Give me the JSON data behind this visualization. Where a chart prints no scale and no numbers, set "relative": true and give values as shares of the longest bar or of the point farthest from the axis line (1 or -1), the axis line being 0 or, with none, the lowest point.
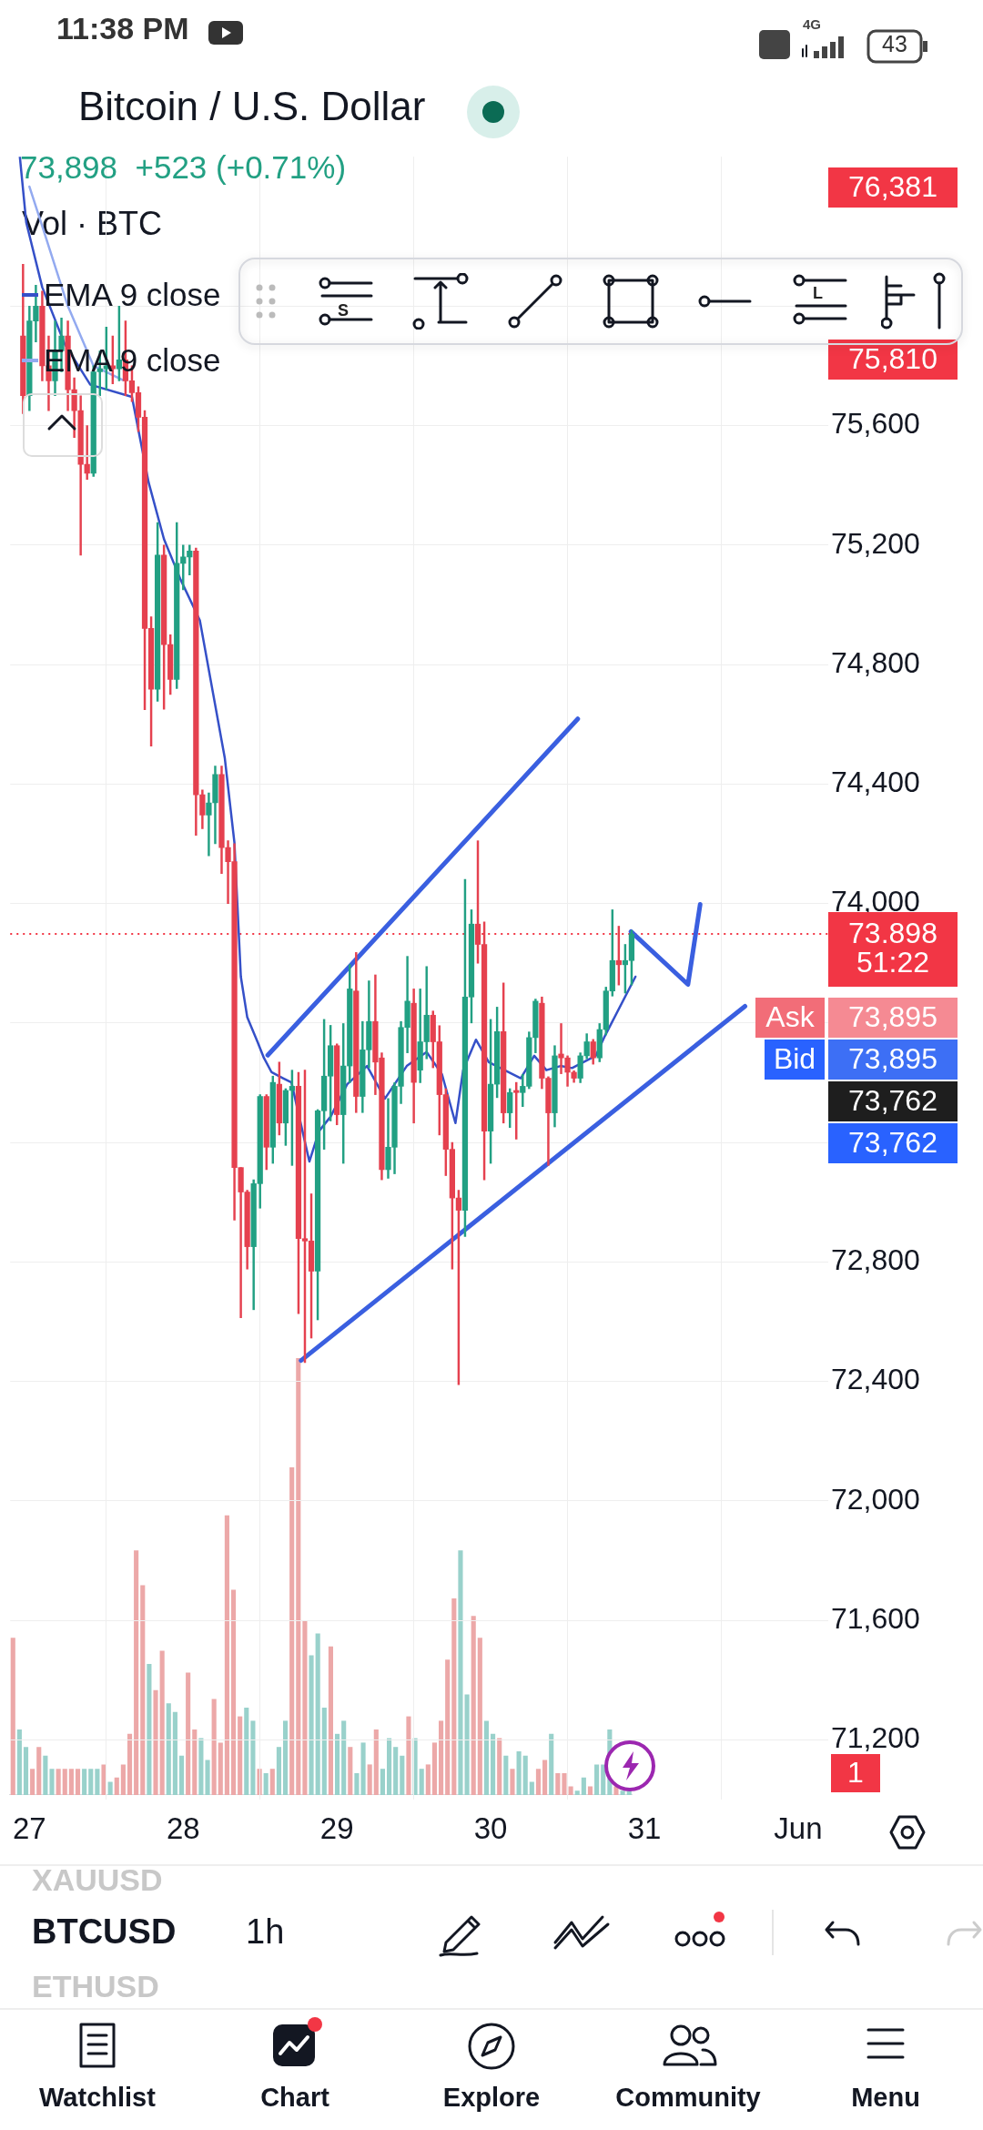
{
  "chart_data": [
    {
      "type": "candlestick",
      "title": "Bitcoin / U.S. Dollar",
      "subtitle": "73,898  +523 (+0.71%)",
      "x": [
        "--05-26T23:00",
        "--05-27T00:00",
        "--05-27T01:00",
        "--05-27T02:00",
        "--05-27T03:00",
        "--05-27T04:00",
        "--05-27T05:00",
        "--05-27T06:00",
        "--05-27T07:00",
        "--05-27T08:00",
        "--05-27T09:00",
        "--05-27T10:00",
        "--05-27T11:00",
        "--05-27T12:00",
        "--05-27T13:00",
        "--05-27T14:00",
        "--05-27T15:00",
        "--05-27T16:00",
        "--05-27T17:00",
        "--05-27T18:00",
        "--05-27T19:00",
        "--05-27T20:00",
        "--05-27T21:00",
        "--05-27T22:00",
        "--05-27T23:00",
        "--05-28T00:00",
        "--05-28T01:00",
        "--05-28T02:00",
        "--05-28T03:00",
        "--05-28T04:00",
        "--05-28T05:00",
        "--05-28T06:00",
        "--05-28T07:00",
        "--05-28T08:00",
        "--05-28T09:00",
        "--05-28T10:00",
        "--05-28T11:00",
        "--05-28T12:00",
        "--05-28T13:00",
        "--05-28T14:00",
        "--05-28T15:00",
        "--05-28T16:00",
        "--05-28T17:00",
        "--05-28T18:00",
        "--05-28T19:00",
        "--05-28T20:00",
        "--05-28T21:00",
        "--05-28T22:00",
        "--05-28T23:00",
        "--05-29T00:00",
        "--05-29T01:00",
        "--05-29T02:00",
        "--05-29T03:00",
        "--05-29T04:00",
        "--05-29T05:00",
        "--05-29T06:00",
        "--05-29T07:00",
        "--05-29T08:00",
        "--05-29T09:00",
        "--05-29T10:00",
        "--05-29T11:00",
        "--05-29T12:00",
        "--05-29T13:00",
        "--05-29T14:00",
        "--05-29T15:00",
        "--05-29T16:00",
        "--05-29T17:00",
        "--05-29T18:00",
        "--05-29T19:00",
        "--05-29T20:00",
        "--05-29T21:00",
        "--05-29T22:00",
        "--05-29T23:00",
        "--05-30T00:00",
        "--05-30T01:00",
        "--05-30T02:00",
        "--05-30T03:00",
        "--05-30T04:00",
        "--05-30T05:00",
        "--05-30T06:00",
        "--05-30T07:00",
        "--05-30T08:00",
        "--05-30T09:00",
        "--05-30T10:00",
        "--05-30T11:00",
        "--05-30T12:00",
        "--05-30T13:00",
        "--05-30T14:00",
        "--05-30T15:00",
        "--05-30T16:00",
        "--05-30T17:00",
        "--05-30T18:00",
        "--05-30T19:00",
        "--05-30T20:00",
        "--05-30T21:00",
        "--05-30T22:00"
      ],
      "ohlc": [
        [
          75900,
          76140,
          75640,
          75700
        ],
        [
          75700,
          76000,
          75650,
          75950
        ],
        [
          75950,
          76070,
          75880,
          76000
        ],
        [
          76000,
          76050,
          75750,
          75800
        ],
        [
          75800,
          75900,
          75650,
          75750
        ],
        [
          75750,
          75950,
          75700,
          75850
        ],
        [
          75850,
          75960,
          75780,
          75900
        ],
        [
          75900,
          75950,
          75650,
          75720
        ],
        [
          75720,
          75760,
          75560,
          75650
        ],
        [
          75650,
          75700,
          75166,
          75470
        ],
        [
          75470,
          75600,
          75420,
          75440
        ],
        [
          75440,
          75800,
          75430,
          75780
        ],
        [
          75780,
          75850,
          75700,
          75790
        ],
        [
          75790,
          75930,
          75720,
          75800
        ],
        [
          75800,
          75900,
          75740,
          75790
        ],
        [
          75790,
          76000,
          75750,
          75820
        ],
        [
          75820,
          75950,
          75700,
          75750
        ],
        [
          75750,
          75800,
          75680,
          75710
        ],
        [
          75710,
          75730,
          75580,
          75628
        ],
        [
          75628,
          75650,
          74649,
          74921
        ],
        [
          74921,
          74960,
          74527,
          74717
        ],
        [
          74717,
          75275,
          74677,
          75166
        ],
        [
          75166,
          75200,
          74650,
          74867
        ],
        [
          74867,
          74900,
          74700,
          74750
        ],
        [
          74750,
          75275,
          74720,
          75139
        ],
        [
          75139,
          75200,
          75050,
          75160
        ],
        [
          75160,
          75200,
          75100,
          75180
        ],
        [
          75180,
          75190,
          74228,
          74364
        ],
        [
          74364,
          74380,
          74250,
          74296
        ],
        [
          74296,
          74370,
          74160,
          74337
        ],
        [
          74337,
          74460,
          74200,
          74432
        ],
        [
          74432,
          74460,
          74100,
          74187
        ],
        [
          74187,
          74210,
          74000,
          74140
        ],
        [
          74140,
          74200,
          72940,
          73116
        ],
        [
          73116,
          73116,
          72613,
          73034
        ],
        [
          73034,
          73040,
          72776,
          72851
        ],
        [
          72851,
          73075,
          72640,
          73062
        ],
        [
          73062,
          73360,
          72980,
          73354
        ],
        [
          73354,
          73360,
          73109,
          73184
        ],
        [
          73184,
          73422,
          73130,
          73401
        ],
        [
          73395,
          73469,
          73225,
          73265
        ],
        [
          73265,
          73380,
          73190,
          73374
        ],
        [
          73374,
          73442,
          73123,
          73388
        ],
        [
          73388,
          73435,
          72627,
          72878
        ],
        [
          72878,
          73442,
          72463,
          72870
        ],
        [
          72870,
          73028,
          72545,
          72769
        ],
        [
          72769,
          73310,
          72606,
          73306
        ],
        [
          73306,
          73612,
          73177,
          73422
        ],
        [
          73422,
          73592,
          73272,
          73524
        ],
        [
          73524,
          73530,
          73259,
          73293
        ],
        [
          73293,
          73598,
          73130,
          73456
        ],
        [
          73456,
          73795,
          73400,
          73714
        ],
        [
          73707,
          73836,
          73300,
          73354
        ],
        [
          73354,
          73605,
          73300,
          73510
        ],
        [
          73510,
          73741,
          73450,
          73605
        ],
        [
          73605,
          73761,
          73360,
          73469
        ],
        [
          73483,
          73500,
          73075,
          73109
        ],
        [
          73109,
          73347,
          73080,
          73184
        ],
        [
          73184,
          73400,
          73095,
          73388
        ],
        [
          73388,
          73605,
          73330,
          73585
        ],
        [
          73585,
          73823,
          73500,
          73673
        ],
        [
          73666,
          73714,
          73265,
          73401
        ],
        [
          73442,
          73714,
          73400,
          73537
        ],
        [
          73537,
          73789,
          73480,
          73626
        ],
        [
          73626,
          73640,
          73450,
          73537
        ],
        [
          73537,
          73591,
          73225,
          73360
        ],
        [
          73360,
          73380,
          73089,
          73177
        ],
        [
          73177,
          73200,
          72776,
          73014
        ],
        [
          73014,
          73040,
          72389,
          72973
        ],
        [
          72973,
          74081,
          72885,
          73687
        ],
        [
          73687,
          73979,
          73600,
          73931
        ],
        [
          73931,
          74210,
          73800,
          73863
        ],
        [
          73863,
          73938,
          73075,
          73238
        ],
        [
          73238,
          73612,
          73130,
          73395
        ],
        [
          73395,
          73653,
          73350,
          73571
        ],
        [
          73571,
          73734,
          73265,
          73299
        ],
        [
          73299,
          73380,
          73250,
          73367
        ],
        [
          73374,
          73401,
          73211,
          73367
        ],
        [
          73367,
          73428,
          73320,
          73388
        ],
        [
          73388,
          73570,
          73380,
          73551
        ],
        [
          73551,
          73680,
          73500,
          73673
        ],
        [
          73666,
          73687,
          73380,
          73415
        ],
        [
          73415,
          73420,
          73123,
          73299
        ],
        [
          73299,
          73524,
          73252,
          73490
        ],
        [
          73496,
          73598,
          73430,
          73483
        ],
        [
          73483,
          73490,
          73388,
          73435
        ],
        [
          73435,
          73440,
          73401,
          73415
        ],
        [
          73415,
          73500,
          73400,
          73490
        ],
        [
          73490,
          73564,
          73480,
          73537
        ],
        [
          73537,
          73545,
          73462,
          73483
        ],
        [
          73483,
          73598,
          73470,
          73578
        ],
        [
          73578,
          73720,
          73560,
          73707
        ],
        [
          73707,
          73979,
          73690,
          73809
        ],
        [
          73809,
          73924,
          73727,
          73795
        ],
        [
          73795,
          73863,
          73700,
          73809
        ],
        [
          73809,
          73910,
          73727,
          73898
        ]
      ],
      "colors": [
        "#e5414f",
        "#22a083",
        "#22a083",
        "#e5414f",
        "#e5414f",
        "#22a083",
        "#22a083",
        "#e5414f",
        "#e5414f",
        "#e5414f",
        "#e5414f",
        "#22a083",
        "#22a083",
        "#22a083",
        "#e5414f",
        "#22a083",
        "#e5414f",
        "#e5414f",
        "#e5414f",
        "#e5414f",
        "#e5414f",
        "#22a083",
        "#e5414f",
        "#e5414f",
        "#22a083",
        "#22a083",
        "#22a083",
        "#e5414f",
        "#e5414f",
        "#22a083",
        "#22a083",
        "#e5414f",
        "#e5414f",
        "#e5414f",
        "#e5414f",
        "#e5414f",
        "#22a083",
        "#22a083",
        "#e5414f",
        "#22a083",
        "#e5414f",
        "#22a083",
        "#22a083",
        "#e5414f",
        "#e5414f",
        "#e5414f",
        "#22a083",
        "#22a083",
        "#22a083",
        "#e5414f",
        "#22a083",
        "#22a083",
        "#e5414f",
        "#22a083",
        "#22a083",
        "#e5414f",
        "#e5414f",
        "#22a083",
        "#22a083",
        "#22a083",
        "#22a083",
        "#e5414f",
        "#22a083",
        "#22a083",
        "#e5414f",
        "#e5414f",
        "#e5414f",
        "#e5414f",
        "#e5414f",
        "#22a083",
        "#22a083",
        "#e5414f",
        "#e5414f",
        "#22a083",
        "#22a083",
        "#e5414f",
        "#22a083",
        "#e5414f",
        "#22a083",
        "#22a083",
        "#22a083",
        "#e5414f",
        "#e5414f",
        "#22a083",
        "#e5414f",
        "#e5414f",
        "#e5414f",
        "#22a083",
        "#22a083",
        "#e5414f",
        "#22a083",
        "#22a083",
        "#22a083",
        "#e5414f",
        "#22a083",
        "#22a083"
      ],
      "series": [
        {
          "type": "line",
          "name": "EMA 9 close",
          "color": "#3550c8",
          "x": [
            "--05-26T22:30",
            "--05-26T23:30",
            "--05-27T02:00",
            "--05-27T05:30",
            "--05-27T09:30",
            "--05-27T16:00",
            "--05-27T18:36",
            "--05-27T21:00",
            "--05-27T23:36",
            "--05-28T02:36",
            "--05-28T06:30",
            "--05-28T08:00",
            "--05-28T09:00",
            "--05-28T10:00",
            "--05-28T11:36",
            "--05-28T12:36",
            "--05-28T13:48",
            "--05-28T15:36",
            "--05-28T16:54",
            "--05-28T19:42",
            "--05-28T21:12",
            "--05-28T23:00",
            "--05-29T01:36",
            "--05-29T04:42",
            "--05-29T07:30",
            "--05-29T10:54",
            "--05-29T14:00",
            "--05-29T16:24",
            "--05-29T18:30",
            "--05-29T19:42",
            "--05-29T21:42",
            "--05-29T23:42",
            "--05-30T04:42",
            "--05-30T06:48",
            "--05-30T08:42",
            "--05-30T10:54",
            "--05-30T12:42",
            "--05-30T16:24",
            "--05-30T17:42",
            "--05-30T22:36"
          ],
          "values": [
            76500,
            76280,
            76063,
            75873,
            75737,
            75696,
            75410,
            75220,
            75084,
            74948,
            74486,
            74203,
            73755,
            73619,
            73537,
            73483,
            73435,
            73415,
            73401,
            73136,
            73238,
            73286,
            73395,
            73456,
            73347,
            73456,
            73503,
            73428,
            73265,
            73442,
            73544,
            73469,
            73415,
            73490,
            73442,
            73456,
            73449,
            73490,
            73551,
            73755
          ]
        },
        {
          "type": "line",
          "name": "EMA 9 close",
          "color": "#93aaf0",
          "x": [
            "--05-27T00:00",
            "--05-27T02:12",
            "--05-27T06:00",
            "--05-27T10:00",
            "--05-27T14:36"
          ],
          "values": [
            76400,
            76254,
            76000,
            75800,
            75752
          ]
        },
        {
          "type": "line",
          "color": "#3a5fe0",
          "x": [
            "--05-28T13:12",
            "--05-30T13:36"
          ],
          "values": [
            73492,
            74618
          ]
        },
        {
          "type": "line",
          "color": "#3a5fe0",
          "x": [
            "--05-28T18:24",
            "--05-31T15:42"
          ],
          "values": [
            72470,
            73656
          ]
        },
        {
          "type": "line",
          "color": "#3a5fe0",
          "x": [
            "--05-30T21:54",
            "--05-31T06:48",
            "--05-31T08:42"
          ],
          "values": [
            73906,
            73729,
            73997
          ]
        }
      ],
      "xlim": [
        "--05-26T21:00",
        "--06-01T04:42"
      ],
      "xticks": [
        {
          "value": "--05-27",
          "label": "27"
        },
        {
          "value": "--05-28",
          "label": "28"
        },
        {
          "value": "--05-29",
          "label": "29"
        },
        {
          "value": "--05-30",
          "label": "30"
        },
        {
          "value": "--05-31",
          "label": "31"
        },
        {
          "value": "--06-01",
          "label": "Jun"
        }
      ],
      "ylim": [
        71000,
        76500
      ],
      "yticks": [
        {
          "value": 71200,
          "label": "71,200"
        },
        {
          "value": 71600,
          "label": "71,600"
        },
        {
          "value": 72000,
          "label": "72,000"
        },
        {
          "value": 72400,
          "label": "72,400"
        },
        {
          "value": 72800,
          "label": "72,800"
        },
        {
          "value": 73200,
          "label": null
        },
        {
          "value": 73600,
          "label": null
        },
        {
          "value": 74000,
          "label": "74,000"
        },
        {
          "value": 74400,
          "label": "74,400"
        },
        {
          "value": 74800,
          "label": "74,800"
        },
        {
          "value": 75200,
          "label": "75,200"
        },
        {
          "value": 75600,
          "label": "75,600"
        },
        {
          "value": 76000,
          "label": null
        }
      ],
      "grid": true,
      "legend": "top left",
      "marker": "none",
      "ref_lines": [
        {
          "axis": "y",
          "value": 73898,
          "label": "73,898",
          "color": "#f23645",
          "line_style": "dotted"
        }
      ],
      "annotations": [
        "51:22",
        "Ask",
        "73,895",
        "Bid",
        "73,895",
        "73,762",
        "73,762",
        "76,381",
        "75,810",
        "11:38 PM",
        "4G",
        "43",
        "S",
        "L",
        "XAUUSD",
        "BTCUSD",
        "1h",
        "ETHUSD",
        "Watchlist",
        "Chart",
        "Explore",
        "Community",
        "Menu"
      ]
    },
    {
      "type": "bar",
      "title": "Vol · BTC",
      "relative": true,
      "categories": [
        null,
        null,
        null,
        null,
        null,
        null,
        null,
        null,
        null,
        null,
        null,
        null,
        null,
        null,
        null,
        null,
        null,
        null,
        null,
        null,
        null,
        null,
        null,
        null,
        null,
        null,
        null,
        null,
        null,
        null,
        null,
        null,
        null,
        null,
        null,
        null,
        null,
        null,
        null,
        null,
        null,
        null,
        null,
        null,
        null,
        null,
        null,
        null,
        null,
        null,
        null,
        null,
        null,
        null,
        null,
        null,
        null,
        null,
        null,
        null,
        null,
        null,
        null,
        null,
        null,
        null,
        null,
        null,
        null,
        null,
        null,
        null,
        null,
        null,
        null,
        null,
        null,
        null,
        null,
        null,
        null,
        null,
        null,
        null,
        null,
        null,
        null,
        null,
        null,
        null,
        null,
        null,
        null,
        null,
        null,
        null
      ],
      "values": [
        0.36,
        0.15,
        0.11,
        0.06,
        0.11,
        0.09,
        0.06,
        0.06,
        0.06,
        0.06,
        0.06,
        0.06,
        0.06,
        0.06,
        0.07,
        0.03,
        0.04,
        0.07,
        0.14,
        0.56,
        0.48,
        0.3,
        0.24,
        0.33,
        0.21,
        0.19,
        0.09,
        0.28,
        0.15,
        0.13,
        0.08,
        0.22,
        0.12,
        0.64,
        0.47,
        0.18,
        0.2,
        0.17,
        0.06,
        0.05,
        0.06,
        0.11,
        0.17,
        0.75,
        1,
        0.4,
        0.32,
        0.37,
        0.2,
        0.34,
        0.14,
        0.17,
        0.11,
        0.05,
        0.12,
        0.07,
        0.15,
        0.06,
        0.13,
        0.11,
        0.09,
        0.18,
        0.13,
        0.06,
        0.07,
        0.12,
        0.17,
        0.31,
        0.45,
        0.56,
        0.23,
        0.41,
        0.36,
        0.17,
        0.14,
        0.13,
        0.09,
        0.06,
        0.1,
        0.09,
        0.03,
        0.06,
        0.08,
        0.14,
        0.05,
        0.05,
        0.02,
        0.01,
        0.04,
        0.02,
        0.07,
        0.07,
        0.15,
        0.02,
        0.01,
        0.01
      ],
      "colors": [
        "#eca8a8",
        "#99d1cb",
        "#99d1cb",
        "#eca8a8",
        "#eca8a8",
        "#99d1cb",
        "#99d1cb",
        "#eca8a8",
        "#eca8a8",
        "#eca8a8",
        "#eca8a8",
        "#99d1cb",
        "#99d1cb",
        "#99d1cb",
        "#eca8a8",
        "#99d1cb",
        "#eca8a8",
        "#eca8a8",
        "#eca8a8",
        "#eca8a8",
        "#eca8a8",
        "#99d1cb",
        "#eca8a8",
        "#eca8a8",
        "#99d1cb",
        "#99d1cb",
        "#99d1cb",
        "#eca8a8",
        "#eca8a8",
        "#99d1cb",
        "#99d1cb",
        "#eca8a8",
        "#eca8a8",
        "#eca8a8",
        "#eca8a8",
        "#eca8a8",
        "#99d1cb",
        "#99d1cb",
        "#eca8a8",
        "#99d1cb",
        "#eca8a8",
        "#99d1cb",
        "#99d1cb",
        "#eca8a8",
        "#eca8a8",
        "#eca8a8",
        "#99d1cb",
        "#99d1cb",
        "#99d1cb",
        "#eca8a8",
        "#99d1cb",
        "#99d1cb",
        "#eca8a8",
        "#99d1cb",
        "#99d1cb",
        "#eca8a8",
        "#eca8a8",
        "#99d1cb",
        "#99d1cb",
        "#99d1cb",
        "#99d1cb",
        "#eca8a8",
        "#99d1cb",
        "#99d1cb",
        "#eca8a8",
        "#eca8a8",
        "#eca8a8",
        "#eca8a8",
        "#eca8a8",
        "#99d1cb",
        "#99d1cb",
        "#eca8a8",
        "#eca8a8",
        "#99d1cb",
        "#99d1cb",
        "#eca8a8",
        "#99d1cb",
        "#eca8a8",
        "#99d1cb",
        "#99d1cb",
        "#99d1cb",
        "#eca8a8",
        "#eca8a8",
        "#99d1cb",
        "#eca8a8",
        "#eca8a8",
        "#eca8a8",
        "#99d1cb",
        "#99d1cb",
        "#eca8a8",
        "#99d1cb",
        "#99d1cb",
        "#99d1cb",
        "#eca8a8",
        "#99d1cb",
        "#99d1cb"
      ],
      "annotations": [
        "1"
      ]
    }
  ]
}
